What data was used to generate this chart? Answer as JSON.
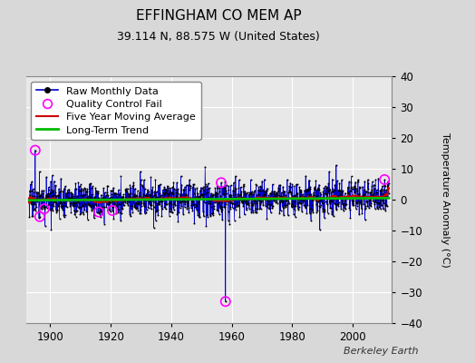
{
  "title": "EFFINGHAM CO MEM AP",
  "subtitle": "39.114 N, 88.575 W (United States)",
  "ylabel": "Temperature Anomaly (°C)",
  "credit": "Berkeley Earth",
  "ylim": [
    -40,
    40
  ],
  "yticks": [
    -40,
    -30,
    -20,
    -10,
    0,
    10,
    20,
    30,
    40
  ],
  "year_start": 1893,
  "year_end": 2012,
  "raw_color": "#0000cc",
  "moving_avg_color": "#cc0000",
  "trend_color": "#00bb00",
  "qc_color": "#ff00ff",
  "bg_color": "#d8d8d8",
  "plot_bg_color": "#e8e8e8",
  "grid_color": "#ffffff",
  "seed": 17,
  "noise_std": 2.8,
  "qc_spike_up_year": 1895,
  "qc_spike_up_val": 16.0,
  "qc_spike_down_year": 1958,
  "qc_spike_down_val": -33.0,
  "xticks": [
    1900,
    1920,
    1940,
    1960,
    1980,
    2000
  ],
  "title_fontsize": 11,
  "subtitle_fontsize": 9,
  "legend_fontsize": 8,
  "credit_fontsize": 8
}
